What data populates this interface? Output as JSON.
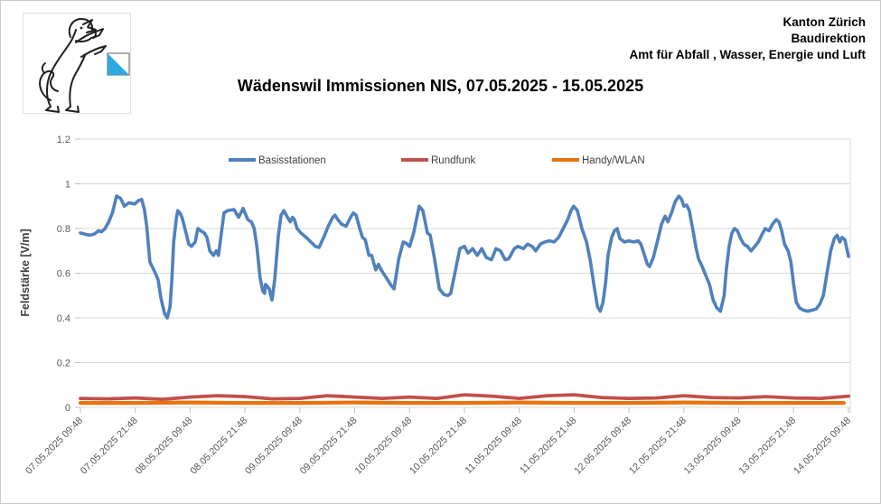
{
  "header": {
    "logo": "kanton-zuerich-lion-crest",
    "org_lines": [
      "Kanton Zürich",
      "Baudirektion",
      "Amt für Abfall , Wasser, Energie und Luft"
    ]
  },
  "title": "Wädenswil Immissionen NIS, 07.05.2025 - 15.05.2025",
  "colors": {
    "basisstationen": "#4F81BD",
    "rundfunk": "#C0504D",
    "handy_wlan": "#E8730C",
    "gridline": "#D9D9D9",
    "tick": "#BFBFBF",
    "axis_text": "#595959",
    "shield_blue": "#2EA9E0"
  },
  "chart_data": {
    "type": "line",
    "title": "Wädenswil Immissionen NIS, 07.05.2025 - 15.05.2025",
    "xlabel": "",
    "ylabel": "Feldstärke [V/m]",
    "ylim": [
      0,
      1.2
    ],
    "yticks": [
      0,
      0.2,
      0.4,
      0.6,
      0.8,
      1,
      1.2
    ],
    "ytick_labels": [
      "0",
      "0.2",
      "0.4",
      "0.6",
      "0.8",
      "1",
      "1.2"
    ],
    "grid": "horizontal",
    "legend_position": "top-inside",
    "x_unit": "hours since first sample",
    "x_hours_range": [
      0,
      168
    ],
    "xtick_hours": [
      0,
      12,
      24,
      36,
      48,
      60,
      72,
      84,
      96,
      108,
      120,
      132,
      144,
      156,
      168
    ],
    "xtick_labels": [
      "07.05.2025 09:48",
      "07.05.2025 21:48",
      "08.05.2025 09:48",
      "08.05.2025 21:48",
      "09.05.2025 09:48",
      "09.05.2025 21:48",
      "10.05.2025 09:48",
      "10.05.2025 21:48",
      "11.05.2025 09:48",
      "11.05.2025 21:48",
      "12.05.2025 09:48",
      "12.05.2025 21:48",
      "13.05.2025 09:48",
      "13.05.2025 21:48",
      "14.05.2025 09:48"
    ],
    "series": [
      {
        "name": "Basisstationen",
        "color": "#4F81BD",
        "width": 3.6,
        "points": [
          [
            0,
            0.78
          ],
          [
            1,
            0.775
          ],
          [
            2,
            0.77
          ],
          [
            3,
            0.775
          ],
          [
            4,
            0.79
          ],
          [
            4.6,
            0.785
          ],
          [
            5.4,
            0.8
          ],
          [
            6.2,
            0.83
          ],
          [
            7,
            0.87
          ],
          [
            7.9,
            0.945
          ],
          [
            8.8,
            0.935
          ],
          [
            9.6,
            0.9
          ],
          [
            10.6,
            0.915
          ],
          [
            11.9,
            0.91
          ],
          [
            12.7,
            0.925
          ],
          [
            13.4,
            0.93
          ],
          [
            14,
            0.885
          ],
          [
            14.5,
            0.81
          ],
          [
            15.2,
            0.65
          ],
          [
            16.4,
            0.6
          ],
          [
            17,
            0.57
          ],
          [
            17.6,
            0.49
          ],
          [
            18.4,
            0.42
          ],
          [
            19,
            0.4
          ],
          [
            19.6,
            0.45
          ],
          [
            20,
            0.57
          ],
          [
            20.4,
            0.74
          ],
          [
            21,
            0.85
          ],
          [
            21.3,
            0.88
          ],
          [
            21.9,
            0.865
          ],
          [
            22.3,
            0.845
          ],
          [
            23.1,
            0.78
          ],
          [
            23.7,
            0.73
          ],
          [
            24.3,
            0.72
          ],
          [
            25.1,
            0.74
          ],
          [
            25.7,
            0.8
          ],
          [
            26.3,
            0.79
          ],
          [
            27.1,
            0.78
          ],
          [
            27.7,
            0.76
          ],
          [
            28.3,
            0.7
          ],
          [
            29.1,
            0.68
          ],
          [
            29.7,
            0.7
          ],
          [
            30.2,
            0.68
          ],
          [
            31.4,
            0.87
          ],
          [
            32.2,
            0.88
          ],
          [
            33.6,
            0.885
          ],
          [
            34.6,
            0.85
          ],
          [
            35.6,
            0.89
          ],
          [
            36.6,
            0.84
          ],
          [
            37.4,
            0.83
          ],
          [
            38,
            0.8
          ],
          [
            38.6,
            0.72
          ],
          [
            39.3,
            0.58
          ],
          [
            39.9,
            0.52
          ],
          [
            40.3,
            0.51
          ],
          [
            40.5,
            0.55
          ],
          [
            41.3,
            0.53
          ],
          [
            41.9,
            0.48
          ],
          [
            42.5,
            0.57
          ],
          [
            43.3,
            0.77
          ],
          [
            43.9,
            0.86
          ],
          [
            44.5,
            0.88
          ],
          [
            45.3,
            0.85
          ],
          [
            45.9,
            0.83
          ],
          [
            46.4,
            0.85
          ],
          [
            46.8,
            0.84
          ],
          [
            47.4,
            0.8
          ],
          [
            48.2,
            0.78
          ],
          [
            48.8,
            0.77
          ],
          [
            49.4,
            0.76
          ],
          [
            50.4,
            0.74
          ],
          [
            51.4,
            0.72
          ],
          [
            52.2,
            0.715
          ],
          [
            53.2,
            0.76
          ],
          [
            54.2,
            0.81
          ],
          [
            55.2,
            0.85
          ],
          [
            55.7,
            0.86
          ],
          [
            56.3,
            0.84
          ],
          [
            57.1,
            0.82
          ],
          [
            58.1,
            0.81
          ],
          [
            59.1,
            0.85
          ],
          [
            59.7,
            0.87
          ],
          [
            60.3,
            0.86
          ],
          [
            61.1,
            0.8
          ],
          [
            61.7,
            0.76
          ],
          [
            62.3,
            0.75
          ],
          [
            63.1,
            0.68
          ],
          [
            63.7,
            0.68
          ],
          [
            64.6,
            0.615
          ],
          [
            65.2,
            0.64
          ],
          [
            65.8,
            0.615
          ],
          [
            67.2,
            0.57
          ],
          [
            68,
            0.545
          ],
          [
            68.6,
            0.53
          ],
          [
            69.6,
            0.66
          ],
          [
            70.6,
            0.74
          ],
          [
            71.2,
            0.735
          ],
          [
            72,
            0.72
          ],
          [
            72.9,
            0.78
          ],
          [
            74.1,
            0.9
          ],
          [
            74.9,
            0.88
          ],
          [
            75.9,
            0.78
          ],
          [
            76.5,
            0.77
          ],
          [
            77.5,
            0.66
          ],
          [
            78.5,
            0.53
          ],
          [
            79.5,
            0.505
          ],
          [
            80.4,
            0.5
          ],
          [
            81,
            0.51
          ],
          [
            82,
            0.61
          ],
          [
            83,
            0.71
          ],
          [
            84,
            0.72
          ],
          [
            84.8,
            0.69
          ],
          [
            85.8,
            0.71
          ],
          [
            86.8,
            0.68
          ],
          [
            87.8,
            0.71
          ],
          [
            88.8,
            0.67
          ],
          [
            89.9,
            0.66
          ],
          [
            90.9,
            0.71
          ],
          [
            91.9,
            0.7
          ],
          [
            92.9,
            0.66
          ],
          [
            93.7,
            0.665
          ],
          [
            94.9,
            0.71
          ],
          [
            95.7,
            0.72
          ],
          [
            96.9,
            0.71
          ],
          [
            97.8,
            0.73
          ],
          [
            98.8,
            0.72
          ],
          [
            99.6,
            0.7
          ],
          [
            100.6,
            0.73
          ],
          [
            101.6,
            0.74
          ],
          [
            102.6,
            0.745
          ],
          [
            103.6,
            0.74
          ],
          [
            104.6,
            0.76
          ],
          [
            105.6,
            0.8
          ],
          [
            106.6,
            0.84
          ],
          [
            107.3,
            0.88
          ],
          [
            107.9,
            0.9
          ],
          [
            108.7,
            0.88
          ],
          [
            109.7,
            0.8
          ],
          [
            110.7,
            0.74
          ],
          [
            111.5,
            0.66
          ],
          [
            112.3,
            0.55
          ],
          [
            113.1,
            0.45
          ],
          [
            113.7,
            0.43
          ],
          [
            114.3,
            0.47
          ],
          [
            114.9,
            0.56
          ],
          [
            115.4,
            0.68
          ],
          [
            116.2,
            0.76
          ],
          [
            116.8,
            0.79
          ],
          [
            117.4,
            0.8
          ],
          [
            118,
            0.755
          ],
          [
            119,
            0.74
          ],
          [
            120,
            0.745
          ],
          [
            121,
            0.74
          ],
          [
            122,
            0.745
          ],
          [
            122.6,
            0.73
          ],
          [
            123.4,
            0.68
          ],
          [
            124,
            0.64
          ],
          [
            124.5,
            0.63
          ],
          [
            125.3,
            0.67
          ],
          [
            126.3,
            0.75
          ],
          [
            127.1,
            0.82
          ],
          [
            127.9,
            0.855
          ],
          [
            128.5,
            0.83
          ],
          [
            129.3,
            0.87
          ],
          [
            130.1,
            0.92
          ],
          [
            130.9,
            0.945
          ],
          [
            131.5,
            0.93
          ],
          [
            132,
            0.9
          ],
          [
            132.6,
            0.905
          ],
          [
            133.2,
            0.88
          ],
          [
            134,
            0.79
          ],
          [
            134.6,
            0.72
          ],
          [
            135.2,
            0.665
          ],
          [
            136,
            0.63
          ],
          [
            136.8,
            0.59
          ],
          [
            137.6,
            0.55
          ],
          [
            138.4,
            0.48
          ],
          [
            139.2,
            0.445
          ],
          [
            140,
            0.43
          ],
          [
            140.8,
            0.5
          ],
          [
            141.3,
            0.62
          ],
          [
            141.9,
            0.72
          ],
          [
            142.5,
            0.78
          ],
          [
            143.1,
            0.8
          ],
          [
            143.7,
            0.79
          ],
          [
            144.3,
            0.76
          ],
          [
            145.1,
            0.73
          ],
          [
            145.9,
            0.72
          ],
          [
            146.7,
            0.7
          ],
          [
            147.5,
            0.72
          ],
          [
            148.3,
            0.74
          ],
          [
            149,
            0.77
          ],
          [
            149.8,
            0.8
          ],
          [
            150.6,
            0.79
          ],
          [
            151.4,
            0.82
          ],
          [
            152.2,
            0.84
          ],
          [
            152.8,
            0.83
          ],
          [
            153.4,
            0.79
          ],
          [
            154,
            0.73
          ],
          [
            154.8,
            0.7
          ],
          [
            155.4,
            0.65
          ],
          [
            156,
            0.55
          ],
          [
            156.6,
            0.47
          ],
          [
            157.3,
            0.445
          ],
          [
            158.1,
            0.435
          ],
          [
            159.1,
            0.43
          ],
          [
            160.1,
            0.435
          ],
          [
            160.9,
            0.44
          ],
          [
            161.7,
            0.46
          ],
          [
            162.5,
            0.5
          ],
          [
            163.3,
            0.6
          ],
          [
            164.1,
            0.7
          ],
          [
            164.9,
            0.755
          ],
          [
            165.5,
            0.77
          ],
          [
            166.1,
            0.74
          ],
          [
            166.6,
            0.76
          ],
          [
            167.2,
            0.75
          ],
          [
            168,
            0.675
          ]
        ]
      },
      {
        "name": "Rundfunk",
        "color": "#C0504D",
        "width": 3.8,
        "points": [
          [
            0,
            0.04
          ],
          [
            6,
            0.038
          ],
          [
            12,
            0.042
          ],
          [
            18,
            0.036
          ],
          [
            24,
            0.046
          ],
          [
            30,
            0.052
          ],
          [
            36,
            0.048
          ],
          [
            42,
            0.038
          ],
          [
            48,
            0.04
          ],
          [
            54,
            0.052
          ],
          [
            60,
            0.046
          ],
          [
            66,
            0.04
          ],
          [
            72,
            0.046
          ],
          [
            78,
            0.04
          ],
          [
            84,
            0.056
          ],
          [
            90,
            0.05
          ],
          [
            96,
            0.04
          ],
          [
            102,
            0.052
          ],
          [
            108,
            0.056
          ],
          [
            114,
            0.044
          ],
          [
            120,
            0.04
          ],
          [
            126,
            0.042
          ],
          [
            132,
            0.052
          ],
          [
            138,
            0.044
          ],
          [
            144,
            0.042
          ],
          [
            150,
            0.048
          ],
          [
            156,
            0.042
          ],
          [
            162,
            0.04
          ],
          [
            168,
            0.05
          ]
        ]
      },
      {
        "name": "Handy/WLAN",
        "color": "#E8730C",
        "width": 4.2,
        "points": [
          [
            0,
            0.02
          ],
          [
            12,
            0.02
          ],
          [
            24,
            0.022
          ],
          [
            36,
            0.02
          ],
          [
            48,
            0.02
          ],
          [
            60,
            0.022
          ],
          [
            72,
            0.02
          ],
          [
            84,
            0.02
          ],
          [
            96,
            0.022
          ],
          [
            108,
            0.02
          ],
          [
            120,
            0.02
          ],
          [
            132,
            0.022
          ],
          [
            144,
            0.02
          ],
          [
            156,
            0.02
          ],
          [
            167,
            0.02
          ]
        ]
      }
    ]
  }
}
